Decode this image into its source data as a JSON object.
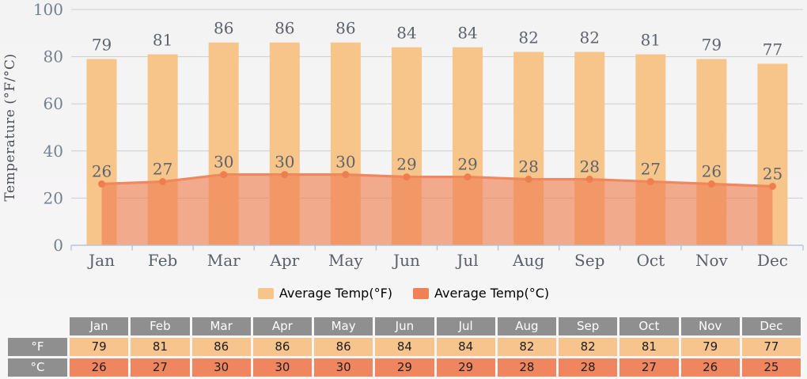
{
  "chart_data": {
    "type": "bar",
    "categories": [
      "Jan",
      "Feb",
      "Mar",
      "Apr",
      "May",
      "Jun",
      "Jul",
      "Aug",
      "Sep",
      "Oct",
      "Nov",
      "Dec"
    ],
    "series": [
      {
        "name": "Average Temp(°F)",
        "type": "bar",
        "color": "#f7c489",
        "values": [
          79,
          81,
          86,
          86,
          86,
          84,
          84,
          82,
          82,
          81,
          79,
          77
        ]
      },
      {
        "name": "Average Temp(°C)",
        "type": "area",
        "color": "#ef8154",
        "fill_opacity": 0.65,
        "values": [
          26,
          27,
          30,
          30,
          30,
          29,
          29,
          28,
          28,
          27,
          26,
          25
        ]
      }
    ],
    "title": "",
    "xlabel": "",
    "ylabel": "Temperature (°F/°C)",
    "ylim": [
      0,
      100
    ],
    "yticks": [
      0,
      20,
      40,
      60,
      80,
      100
    ],
    "grid": true,
    "legend_position": "bottom"
  },
  "legend": {
    "f_label": "Average Temp(°F)",
    "c_label": "Average Temp(°C)"
  },
  "table": {
    "columns": [
      "Jan",
      "Feb",
      "Mar",
      "Apr",
      "May",
      "Jun",
      "Jul",
      "Aug",
      "Sep",
      "Oct",
      "Nov",
      "Dec"
    ],
    "rows": [
      {
        "label": "°F",
        "cell_color": "#f7c48e",
        "values": [
          79,
          81,
          86,
          86,
          86,
          84,
          84,
          82,
          82,
          81,
          79,
          77
        ]
      },
      {
        "label": "°C",
        "cell_color": "#f0865f",
        "values": [
          26,
          27,
          30,
          30,
          30,
          29,
          29,
          28,
          28,
          27,
          26,
          25
        ]
      }
    ],
    "header_color": "#8f8f8f"
  },
  "colors": {
    "background": "#f5f4f5",
    "grid_line": "#cdcdcd",
    "axis_line": "#b7c3d5",
    "bar_fill": "#f7c489",
    "area_fill": "#ef8154",
    "line_stroke": "#f0875d",
    "marker_fill": "#ee7d50",
    "ytick_label": "#73808f",
    "month_label": "#59606a",
    "value_label": "#5d636c",
    "table_header_bg": "#8f8f8f",
    "table_f_bg": "#f7c48e",
    "table_c_bg": "#f0865f"
  }
}
